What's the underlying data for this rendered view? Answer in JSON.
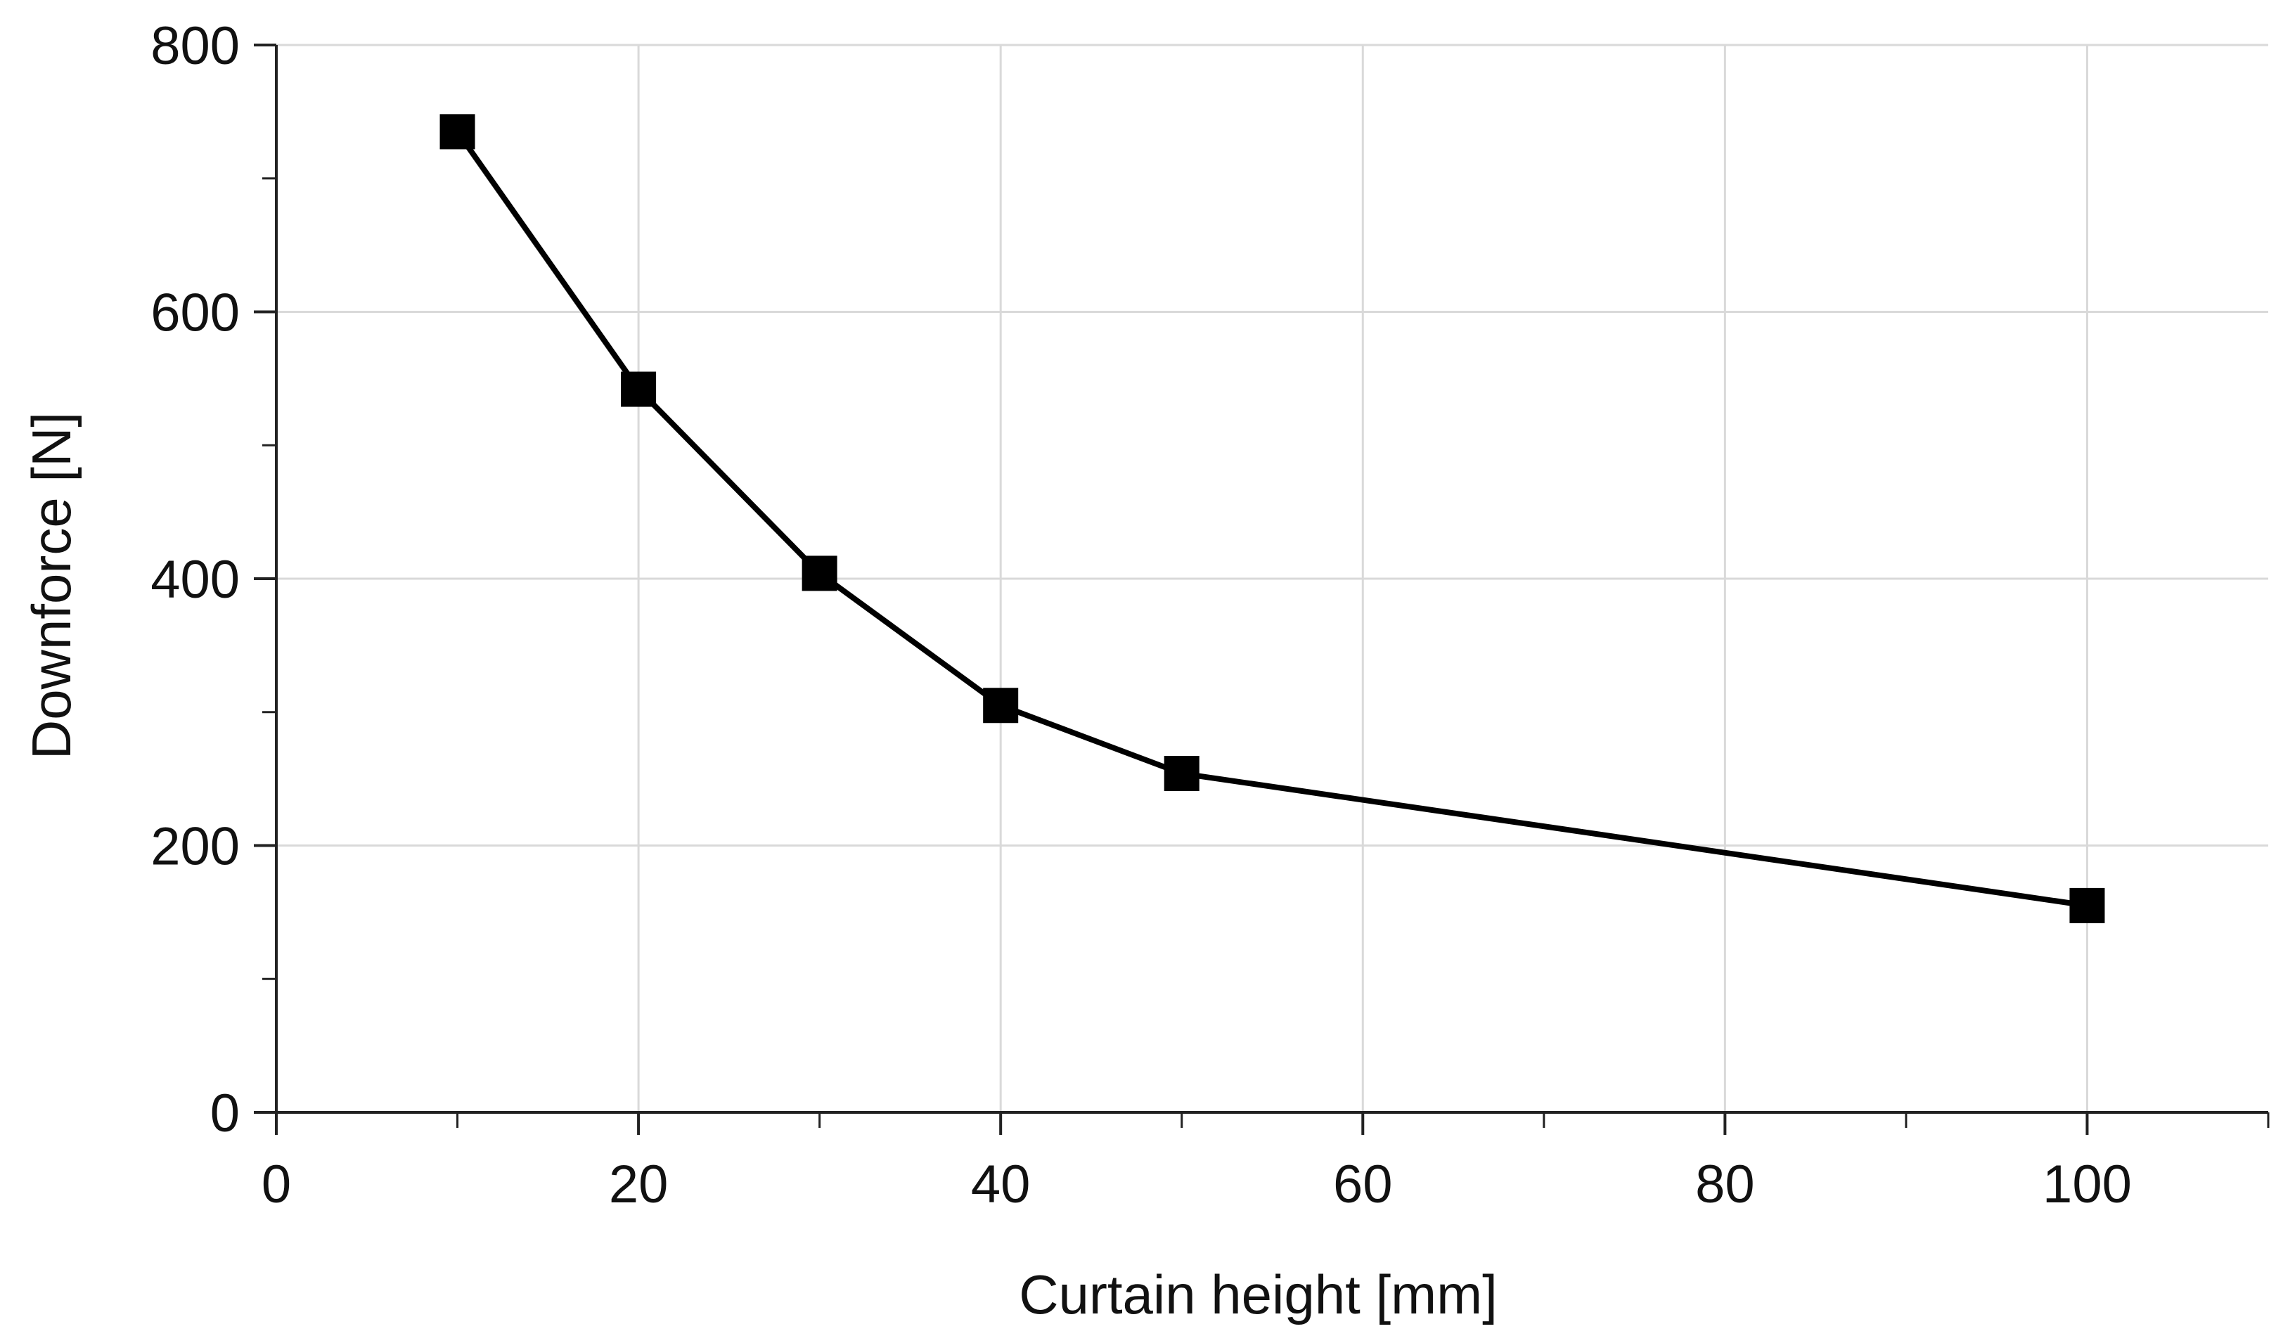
{
  "chart_data": {
    "type": "line",
    "title": "",
    "xlabel": "Curtain height [mm]",
    "ylabel": "Downforce [N]",
    "xlim": [
      0,
      110
    ],
    "ylim": [
      0,
      800
    ],
    "x_ticks": [
      0,
      20,
      40,
      60,
      80,
      100
    ],
    "x_tick_labels": [
      "0",
      "20",
      "40",
      "60",
      "80",
      "100"
    ],
    "y_ticks": [
      0,
      200,
      400,
      600,
      800
    ],
    "y_tick_labels": [
      "0",
      "200",
      "400",
      "600",
      "800"
    ],
    "x_minor_ticks": [
      10,
      30,
      50,
      70,
      90,
      110
    ],
    "y_minor_ticks": [
      100,
      300,
      500,
      700
    ],
    "grid": true,
    "series": [
      {
        "name": "Downforce",
        "marker": "square",
        "color": "#000000",
        "x": [
          10,
          20,
          30,
          40,
          50,
          100
        ],
        "y": [
          735,
          542,
          404,
          305,
          254,
          155
        ]
      }
    ]
  }
}
